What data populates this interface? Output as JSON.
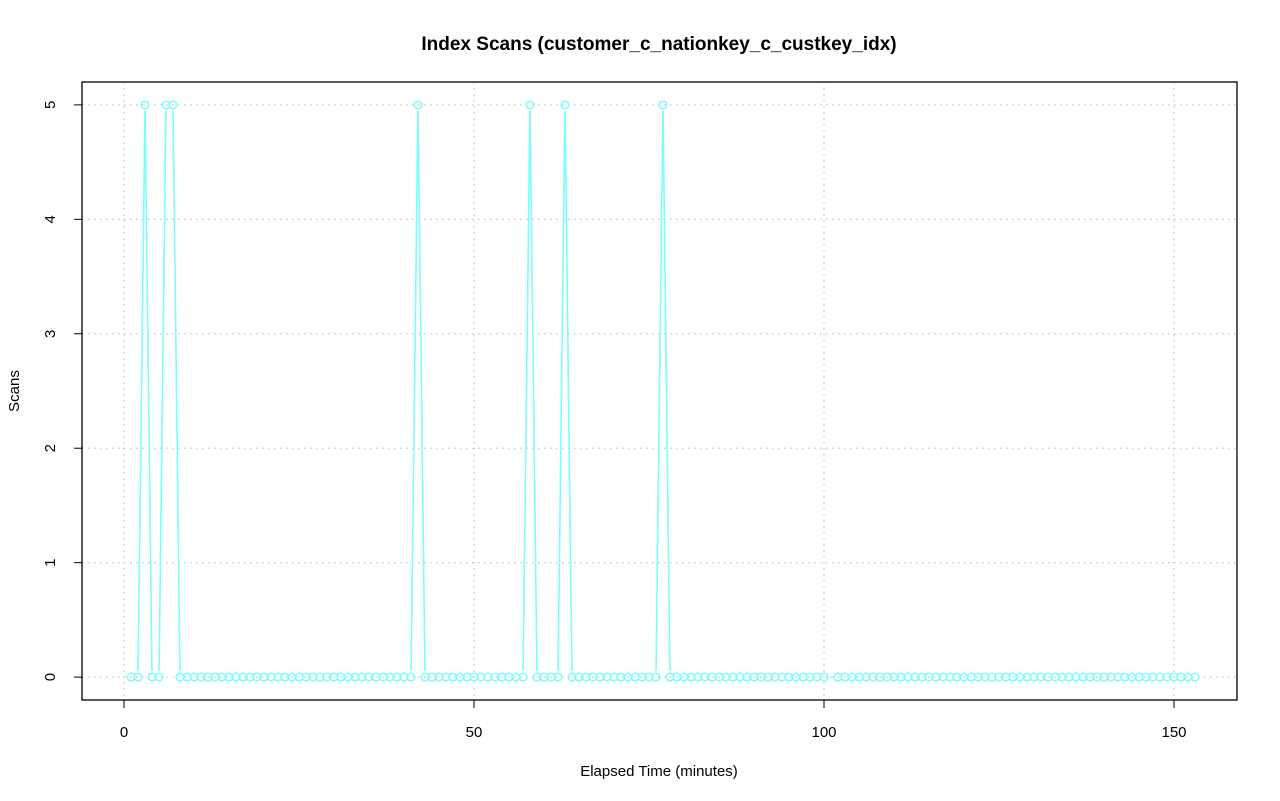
{
  "chart_data": {
    "type": "line",
    "title": "Index Scans (customer_c_nationkey_c_custkey_idx)",
    "xlabel": "Elapsed Time (minutes)",
    "ylabel": "Scans",
    "xlim": [
      -6,
      159
    ],
    "ylim": [
      -0.2,
      5.2
    ],
    "xticks": [
      0,
      50,
      100,
      150
    ],
    "yticks": [
      0,
      1,
      2,
      3,
      4,
      5
    ],
    "grid": true,
    "series": [
      {
        "color": "#7ffcfc",
        "markers": "open-circle",
        "x": [
          1,
          2,
          3,
          4,
          5,
          6,
          7,
          8,
          9,
          10,
          11,
          12,
          13,
          14,
          15,
          16,
          17,
          18,
          19,
          20,
          21,
          22,
          23,
          24,
          25,
          26,
          27,
          28,
          29,
          30,
          31,
          32,
          33,
          34,
          35,
          36,
          37,
          38,
          39,
          40,
          41,
          42,
          43,
          44,
          45,
          46,
          47,
          48,
          49,
          50,
          51,
          52,
          53,
          54,
          55,
          56,
          57,
          58,
          59,
          60,
          61,
          62,
          63,
          64,
          65,
          66,
          67,
          68,
          69,
          70,
          71,
          72,
          73,
          74,
          75,
          76,
          77,
          78,
          79,
          80,
          81,
          82,
          83,
          84,
          85,
          86,
          87,
          88,
          89,
          90,
          91,
          92,
          93,
          94,
          95,
          96,
          97,
          98,
          99,
          100,
          102,
          103,
          104,
          105,
          106,
          107,
          108,
          109,
          110,
          111,
          112,
          113,
          114,
          115,
          116,
          117,
          118,
          119,
          120,
          121,
          122,
          123,
          124,
          125,
          126,
          127,
          128,
          129,
          130,
          131,
          132,
          133,
          134,
          135,
          136,
          137,
          138,
          139,
          140,
          141,
          142,
          143,
          144,
          145,
          146,
          147,
          148,
          149,
          150,
          151,
          152,
          153
        ],
        "y": [
          0,
          0,
          5,
          0,
          0,
          5,
          5,
          0,
          0,
          0,
          0,
          0,
          0,
          0,
          0,
          0,
          0,
          0,
          0,
          0,
          0,
          0,
          0,
          0,
          0,
          0,
          0,
          0,
          0,
          0,
          0,
          0,
          0,
          0,
          0,
          0,
          0,
          0,
          0,
          0,
          0,
          5,
          0,
          0,
          0,
          0,
          0,
          0,
          0,
          0,
          0,
          0,
          0,
          0,
          0,
          0,
          0,
          5,
          0,
          0,
          0,
          0,
          5,
          0,
          0,
          0,
          0,
          0,
          0,
          0,
          0,
          0,
          0,
          0,
          0,
          0,
          5,
          0,
          0,
          0,
          0,
          0,
          0,
          0,
          0,
          0,
          0,
          0,
          0,
          0,
          0,
          0,
          0,
          0,
          0,
          0,
          0,
          0,
          0,
          0,
          0,
          0,
          0,
          0,
          0,
          0,
          0,
          0,
          0,
          0,
          0,
          0,
          0,
          0,
          0,
          0,
          0,
          0,
          0,
          0,
          0,
          0,
          0,
          0,
          0,
          0,
          0,
          0,
          0,
          0,
          0,
          0,
          0,
          0,
          0,
          0,
          0,
          0,
          0,
          0,
          0,
          0,
          0,
          0,
          0,
          0,
          0,
          0,
          0,
          0,
          0,
          0
        ]
      }
    ]
  }
}
